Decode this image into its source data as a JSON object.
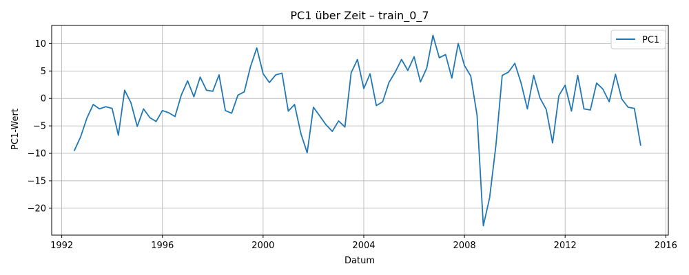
{
  "chart_data": {
    "type": "line",
    "title": "PC1 über Zeit – train_0_7",
    "xlabel": "Datum",
    "ylabel": "PC1-Wert",
    "xlim": [
      1991.6,
      2016.1
    ],
    "ylim": [
      -24.9,
      13.3
    ],
    "x_ticks": [
      1992,
      1996,
      2000,
      2004,
      2008,
      2012,
      2016
    ],
    "y_ticks": [
      -20,
      -15,
      -10,
      -5,
      0,
      5,
      10
    ],
    "grid": true,
    "legend_position": "top-right",
    "colors": {
      "series": "#1f77b4",
      "grid": "#b0b0b0"
    },
    "series": [
      {
        "name": "PC1",
        "x": [
          1992.5,
          1992.75,
          1993.0,
          1993.25,
          1993.5,
          1993.75,
          1994.0,
          1994.25,
          1994.5,
          1994.75,
          1995.0,
          1995.25,
          1995.5,
          1995.75,
          1996.0,
          1996.25,
          1996.5,
          1996.75,
          1997.0,
          1997.25,
          1997.5,
          1997.75,
          1998.0,
          1998.25,
          1998.5,
          1998.75,
          1999.0,
          1999.25,
          1999.5,
          1999.75,
          2000.0,
          2000.25,
          2000.5,
          2000.75,
          2001.0,
          2001.25,
          2001.5,
          2001.75,
          2002.0,
          2002.25,
          2002.5,
          2002.75,
          2003.0,
          2003.25,
          2003.5,
          2003.75,
          2004.0,
          2004.25,
          2004.5,
          2004.75,
          2005.0,
          2005.25,
          2005.5,
          2005.75,
          2006.0,
          2006.25,
          2006.5,
          2006.75,
          2007.0,
          2007.25,
          2007.5,
          2007.75,
          2008.0,
          2008.25,
          2008.5,
          2008.75,
          2009.0,
          2009.25,
          2009.5,
          2009.75,
          2010.0,
          2010.25,
          2010.5,
          2010.75,
          2011.0,
          2011.25,
          2011.5,
          2011.75,
          2012.0,
          2012.25,
          2012.5,
          2012.75,
          2013.0,
          2013.25,
          2013.5,
          2013.75,
          2014.0,
          2014.25,
          2014.5,
          2014.75,
          2015.0
        ],
        "values": [
          -9.5,
          -7.0,
          -3.6,
          -1.1,
          -1.9,
          -1.5,
          -1.8,
          -6.7,
          1.5,
          -0.8,
          -5.1,
          -1.9,
          -3.5,
          -4.2,
          -2.2,
          -2.6,
          -3.3,
          0.6,
          3.2,
          0.3,
          3.9,
          1.5,
          1.3,
          4.3,
          -2.2,
          -2.7,
          0.6,
          1.2,
          5.8,
          9.2,
          4.5,
          2.9,
          4.3,
          4.6,
          -2.3,
          -1.1,
          -6.4,
          -9.9,
          -1.6,
          -3.2,
          -4.8,
          -6.0,
          -4.1,
          -5.2,
          4.7,
          7.1,
          1.8,
          4.5,
          -1.3,
          -0.6,
          2.9,
          4.8,
          7.1,
          5.1,
          7.6,
          3.0,
          5.5,
          11.5,
          7.4,
          8.0,
          3.7,
          10.0,
          6.0,
          4.1,
          -3.1,
          -23.2,
          -18.1,
          -8.5,
          4.2,
          4.8,
          6.4,
          2.8,
          -1.9,
          4.2,
          0.1,
          -2.0,
          -8.1,
          0.5,
          2.4,
          -2.3,
          4.2,
          -1.9,
          -2.1,
          2.8,
          1.7,
          -0.6,
          4.4,
          -0.1,
          -1.6,
          -1.8,
          -8.5
        ]
      }
    ]
  }
}
